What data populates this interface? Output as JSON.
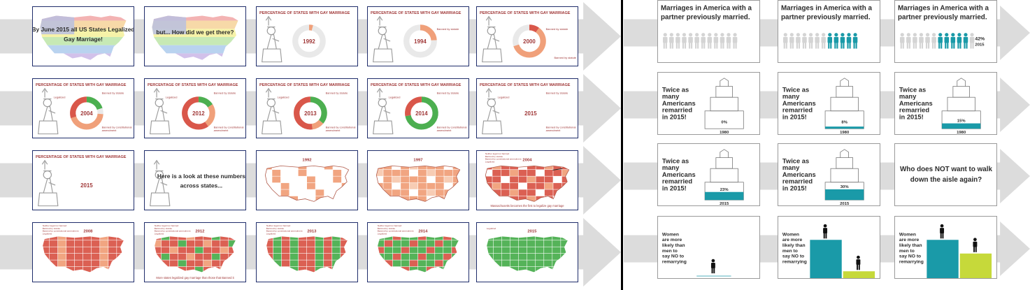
{
  "left_panel": {
    "chart_title": "PERCENTAGE OF STATES WITH GAY MARRIAGE",
    "intro_slide_text_1": "By June 2015 all US States Legalized",
    "intro_slide_text_2": "Gay Marriage!",
    "question_slide": "but... How did we get there?",
    "transition_slide_1": "Here is a look at these numbers",
    "transition_slide_2": "across states...",
    "donut_years": [
      "1992",
      "1994",
      "2000",
      "2004",
      "2012",
      "2013",
      "2014",
      "2015",
      "2015"
    ],
    "segment_labels": {
      "banned_by_statute": "Banned by statute",
      "banned_by_constitutional": "Banned by constitutional",
      "amendment": "amendment",
      "legalized": "Legalized"
    },
    "map_years": [
      "1992",
      "1997",
      "2004",
      "2008",
      "2012",
      "2013",
      "2014",
      "2015"
    ],
    "map_legend": {
      "neither": "Neither legal nor banned",
      "statute": "Banned by statute",
      "constitutional": "Banned by constitutional amendment",
      "legalized": "Legalized"
    },
    "map_notes": {
      "massachusetts": "Massachusetts becomes the first to legalize gay marriage",
      "more_states": "More states legalized gay marriage than those that Banned it"
    }
  },
  "right_panel": {
    "marriages_title_1": "Marriages in America with a",
    "marriages_title_2": "partner previously married.",
    "pct_label": "42%",
    "pct_year": "2015",
    "twice_lines": [
      "Twice as",
      "many",
      "Americans",
      "remarried",
      "in 2015!"
    ],
    "cake_values": [
      "0%",
      "8%",
      "15%",
      "23%",
      "30%"
    ],
    "cake_years": [
      "1980",
      "1980",
      "1980",
      "2015",
      "2015"
    ],
    "question_1": "Who does NOT want to walk",
    "question_2": "down the aisle again?",
    "women_lines": [
      "Women",
      "are more",
      "likely than",
      "men to",
      "say NO to",
      "remarrying"
    ]
  },
  "colors": {
    "legalized": "#4caf50",
    "statute": "#f0a07a",
    "constitutional": "#d9574a",
    "neither": "#e9e9e9",
    "teal": "#1a9aa8",
    "lime": "#c6d93a",
    "person_gray": "#d4d4d4",
    "frame_blue": "#1f2d6b",
    "arrow_gray": "#dcdcdc"
  }
}
